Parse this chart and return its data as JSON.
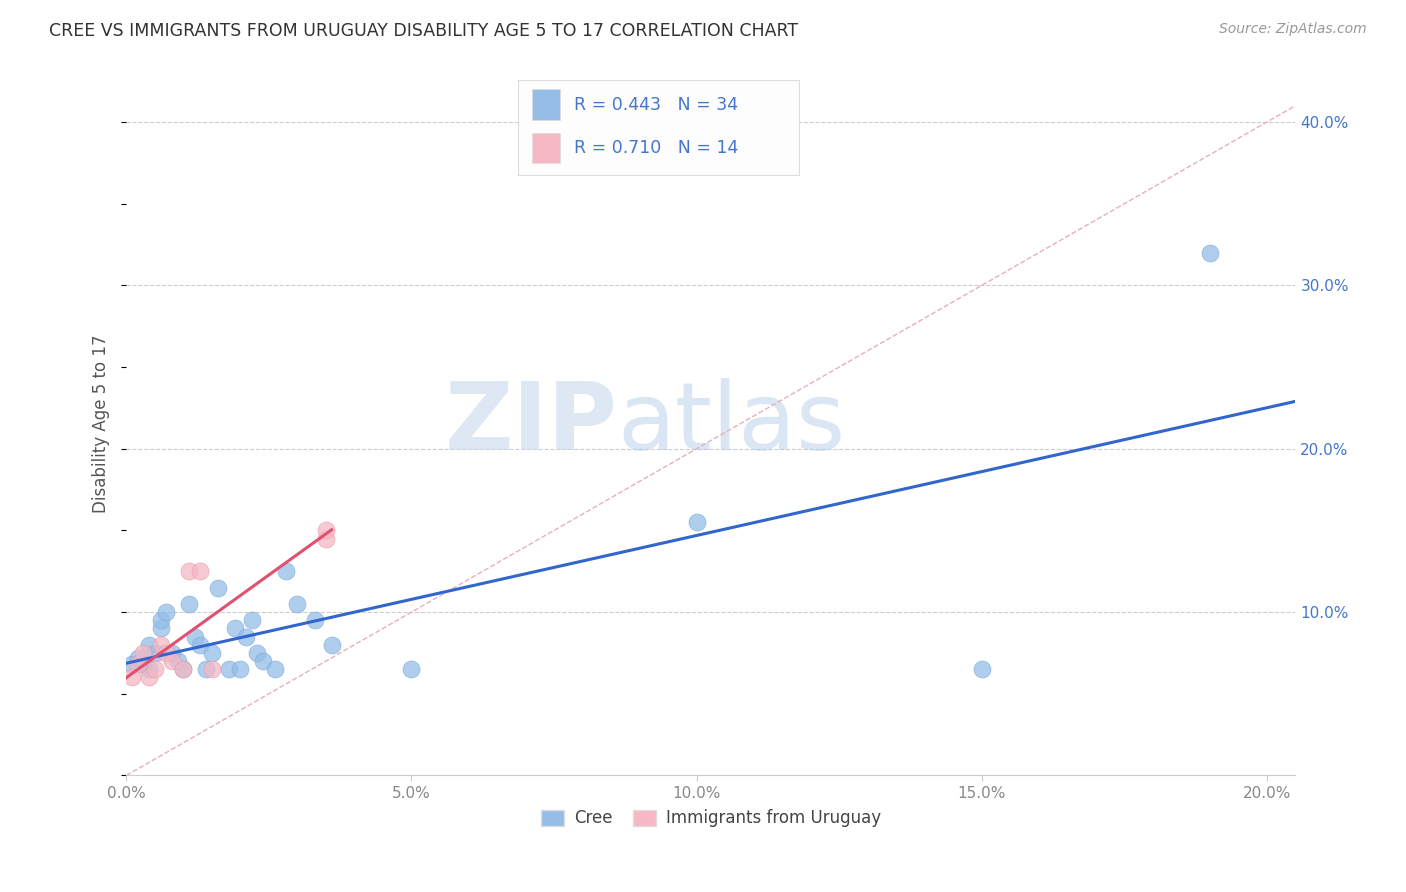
{
  "title": "CREE VS IMMIGRANTS FROM URUGUAY DISABILITY AGE 5 TO 17 CORRELATION CHART",
  "source": "Source: ZipAtlas.com",
  "ylabel": "Disability Age 5 to 17",
  "xlim": [
    0.0,
    0.205
  ],
  "ylim": [
    0.0,
    0.43
  ],
  "xticks": [
    0.0,
    0.05,
    0.1,
    0.15,
    0.2
  ],
  "xtick_labels": [
    "0.0%",
    "5.0%",
    "10.0%",
    "15.0%",
    "20.0%"
  ],
  "yticks": [
    0.0,
    0.1,
    0.2,
    0.3,
    0.4
  ],
  "ytick_labels": [
    "",
    "10.0%",
    "20.0%",
    "30.0%",
    "40.0%"
  ],
  "background_color": "#ffffff",
  "grid_color": "#cccccc",
  "cree_color": "#94bde8",
  "cree_edge_color": "#7aaad8",
  "uruguay_color": "#f5b8c4",
  "uruguay_edge_color": "#e898a8",
  "cree_line_color": "#3366cc",
  "uruguay_line_color": "#e05070",
  "diagonal_color": "#e8b0b8",
  "R_cree": 0.443,
  "N_cree": 34,
  "R_uruguay": 0.71,
  "N_uruguay": 14,
  "cree_label": "Cree",
  "uruguay_label": "Immigrants from Uruguay",
  "watermark_zip": "ZIP",
  "watermark_atlas": "atlas",
  "cree_x": [
    0.001,
    0.002,
    0.003,
    0.004,
    0.004,
    0.005,
    0.006,
    0.006,
    0.007,
    0.008,
    0.009,
    0.01,
    0.011,
    0.012,
    0.013,
    0.014,
    0.015,
    0.016,
    0.018,
    0.019,
    0.02,
    0.021,
    0.022,
    0.023,
    0.024,
    0.026,
    0.028,
    0.03,
    0.033,
    0.036,
    0.05,
    0.1,
    0.15,
    0.19
  ],
  "cree_y": [
    0.068,
    0.072,
    0.068,
    0.08,
    0.065,
    0.075,
    0.09,
    0.095,
    0.1,
    0.075,
    0.07,
    0.065,
    0.105,
    0.085,
    0.08,
    0.065,
    0.075,
    0.115,
    0.065,
    0.09,
    0.065,
    0.085,
    0.095,
    0.075,
    0.07,
    0.065,
    0.125,
    0.105,
    0.095,
    0.08,
    0.065,
    0.155,
    0.065,
    0.32
  ],
  "uruguay_x": [
    0.001,
    0.002,
    0.003,
    0.004,
    0.005,
    0.006,
    0.007,
    0.008,
    0.01,
    0.011,
    0.013,
    0.015,
    0.035,
    0.035
  ],
  "uruguay_y": [
    0.06,
    0.068,
    0.075,
    0.06,
    0.065,
    0.08,
    0.075,
    0.07,
    0.065,
    0.125,
    0.125,
    0.065,
    0.145,
    0.15
  ],
  "legend_border_color": "#dddddd",
  "ytick_color": "#4477cc",
  "xtick_color": "#888888",
  "title_color": "#333333",
  "ylabel_color": "#555555",
  "source_color": "#999999"
}
